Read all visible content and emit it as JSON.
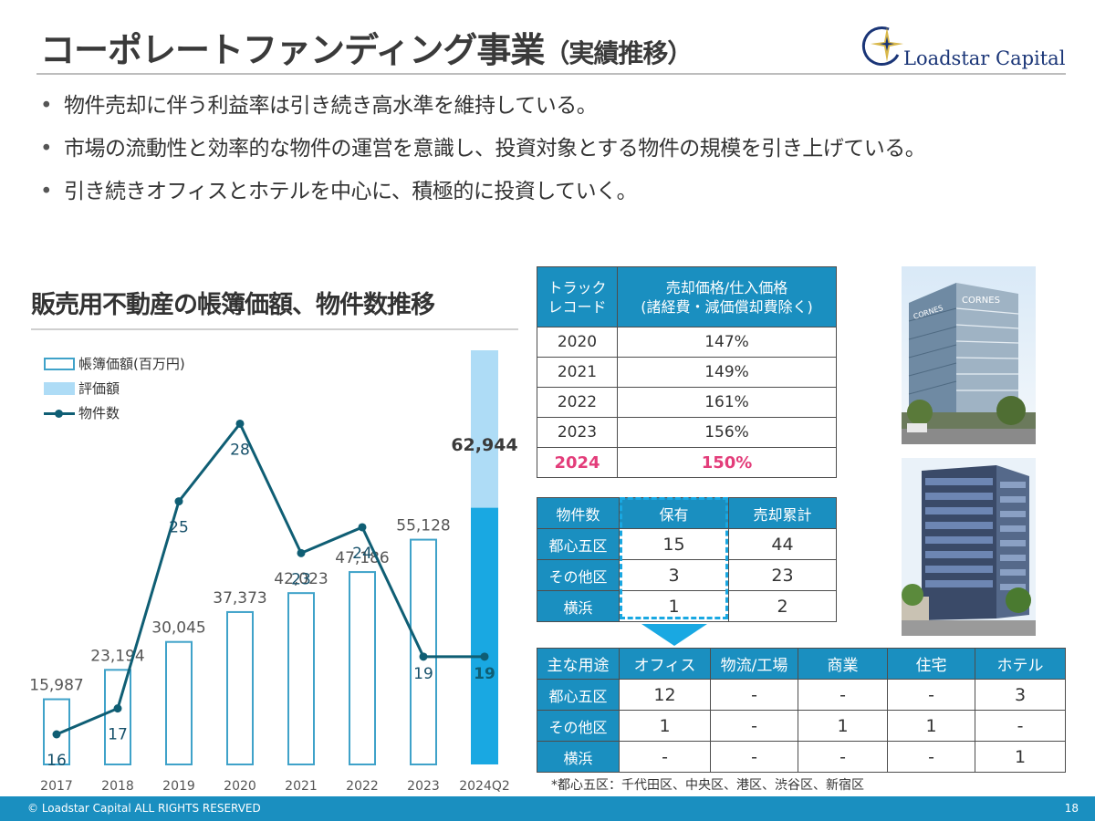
{
  "page": {
    "title": "コーポレートファンディング事業",
    "title_sub": "（実績推移）",
    "logo_text": "Loadstar Capital",
    "bullets": [
      "物件売却に伴う利益率は引き続き高水準を維持している。",
      "市場の流動性と効率的な物件の運営を意識し、投資対象とする物件の規模を引き上げている。",
      "引き続きオフィスとホテルを中心に、積極的に投資していく。"
    ],
    "bullet_marker": "•",
    "footer": {
      "copyright": "© Loadstar Capital ALL RIGHTS RESERVED",
      "page_number": "18"
    }
  },
  "chart_data": {
    "type": "bar",
    "title": "販売用不動産の帳簿価額、物件数推移",
    "categories": [
      "2017",
      "2018",
      "2019",
      "2020",
      "2021",
      "2022",
      "2023",
      "2024Q2"
    ],
    "legend": [
      "帳簿価額(百万円)",
      "評価額",
      "物件数"
    ],
    "legend_position": "top-left",
    "grid": false,
    "series": [
      {
        "name": "帳簿価額(百万円)",
        "type": "bar",
        "values": [
          15987,
          23194,
          30045,
          37373,
          42023,
          47186,
          55128,
          62944
        ],
        "labels": [
          "15,987",
          "23,194",
          "30,045",
          "37,373",
          "42,023",
          "47,186",
          "55,128",
          "62,944"
        ],
        "color": "#3fa2c9"
      },
      {
        "name": "評価額",
        "type": "bar",
        "values": [
          null,
          null,
          null,
          null,
          null,
          null,
          null,
          null
        ],
        "color": "#aedcf6"
      },
      {
        "name": "物件数",
        "type": "line",
        "values": [
          16,
          17,
          25,
          28,
          23,
          24,
          19,
          19
        ],
        "color": "#0f5e74"
      }
    ],
    "highlight_color": "#19a8e2"
  },
  "track_record": {
    "header_col1": [
      "トラック",
      "レコード"
    ],
    "header_col2": [
      "売却価格/仕入価格",
      "(諸経費・減価償却費除く)"
    ],
    "rows": [
      {
        "year": "2020",
        "value": "147%"
      },
      {
        "year": "2021",
        "value": "149%"
      },
      {
        "year": "2022",
        "value": "161%"
      },
      {
        "year": "2023",
        "value": "156%"
      }
    ],
    "highlight_row": {
      "year": "2024",
      "value": "150%"
    },
    "highlight_color": "#e33d7a"
  },
  "counts_table": {
    "headers": [
      "物件数",
      "保有",
      "売却累計"
    ],
    "rows": [
      {
        "label": "都心五区",
        "held": "15",
        "sold": "44"
      },
      {
        "label": "その他区",
        "held": "3",
        "sold": "23"
      },
      {
        "label": "横浜",
        "held": "1",
        "sold": "2"
      }
    ]
  },
  "uses_table": {
    "headers": [
      "主な用途",
      "オフィス",
      "物流/工場",
      "商業",
      "住宅",
      "ホテル"
    ],
    "rows": [
      {
        "label": "都心五区",
        "cells": [
          "12",
          "-",
          "-",
          "-",
          "3"
        ]
      },
      {
        "label": "その他区",
        "cells": [
          "1",
          "-",
          "1",
          "1",
          "-"
        ]
      },
      {
        "label": "横浜",
        "cells": [
          "-",
          "-",
          "-",
          "-",
          "1"
        ]
      }
    ]
  },
  "note": "*都心五区：千代田区、中央区、港区、渋谷区、新宿区",
  "photos": {
    "building1_sign": "CORNES",
    "building1_sign2": "CORNES"
  },
  "colors": {
    "header_blue": "#1a8fc0",
    "bar_outline": "#3fa2c9",
    "line": "#0f5e74"
  }
}
